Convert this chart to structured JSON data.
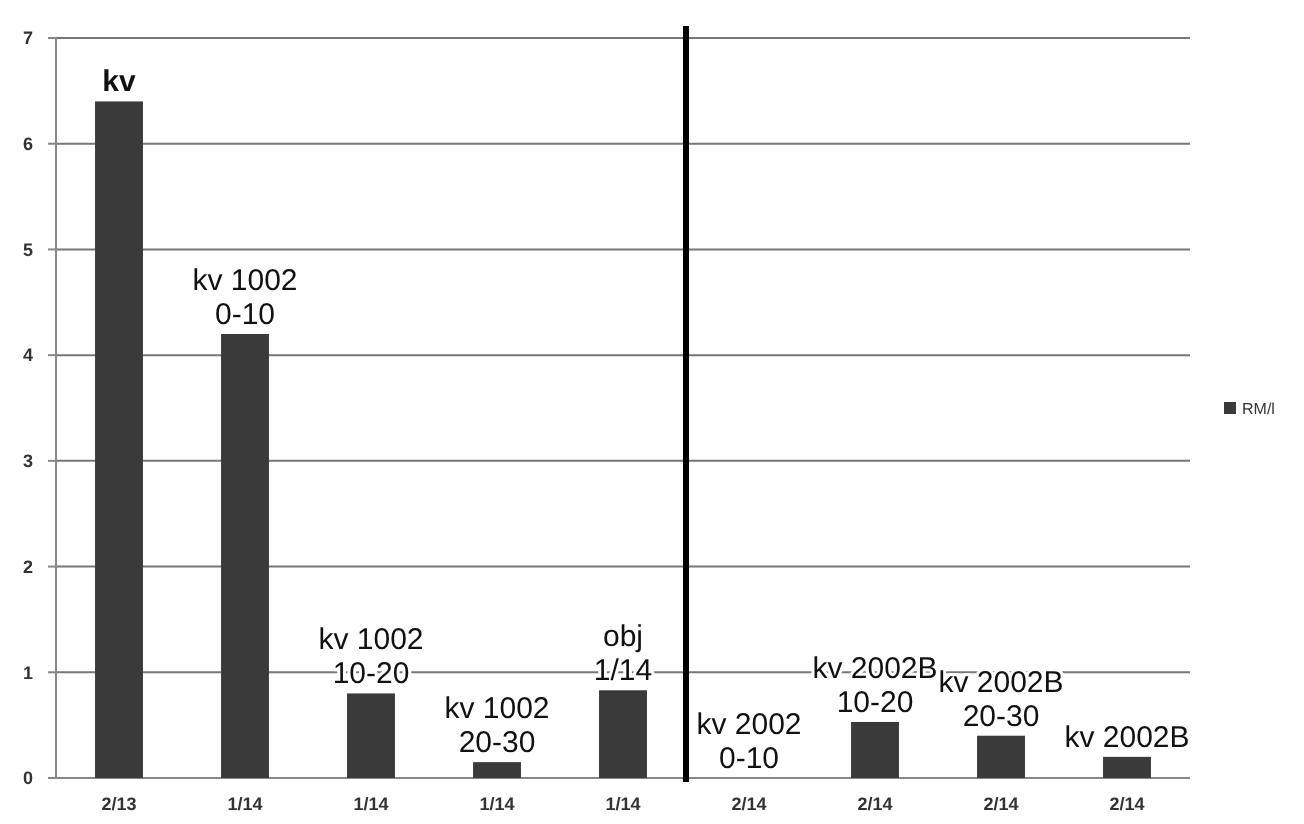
{
  "chart_data": [
    {
      "type": "bar",
      "categories": [
        "2/13",
        "1/14",
        "1/14",
        "1/14",
        "1/14"
      ],
      "series": [
        {
          "color": "#3a3a3a",
          "values": [
            6.4,
            4.2,
            0.8,
            0.15,
            0.83
          ]
        }
      ],
      "ylim": [
        0,
        7
      ],
      "yticks": [
        0,
        1,
        2,
        3,
        4,
        5,
        6,
        7
      ],
      "grid": "y",
      "annotations": [
        {
          "text": "kv",
          "y": 6.4
        },
        {
          "text": "kv 1002\n0-10",
          "y": 4.2
        },
        {
          "text": "kv 1002\n10-20",
          "y": 0.8
        },
        {
          "text": "kv 1002\n20-30",
          "y": 0.15
        },
        {
          "text": "obj\n1/14",
          "y": 0.83
        }
      ]
    },
    {
      "type": "bar",
      "categories": [
        "2/14",
        "2/14",
        "2/14",
        "2/14"
      ],
      "series": [
        {
          "name": "RM/l",
          "color": "#3a3a3a",
          "values": [
            0,
            0.53,
            0.4,
            0.2
          ]
        }
      ],
      "ylim": [
        0,
        7
      ],
      "yticks": [
        0,
        1,
        2,
        3,
        4,
        5,
        6,
        7
      ],
      "grid": "y",
      "legend": "right",
      "tick_labels": "x",
      "annotations": [
        {
          "text": "kv 2002\n0-10",
          "y": 0
        },
        {
          "text": "kv 2002B\n10-20",
          "y": 0.53
        },
        {
          "text": "kv 2002B\n20-30",
          "y": 0.4
        },
        {
          "text": "kv 2002B",
          "y": 0.2
        }
      ]
    }
  ]
}
